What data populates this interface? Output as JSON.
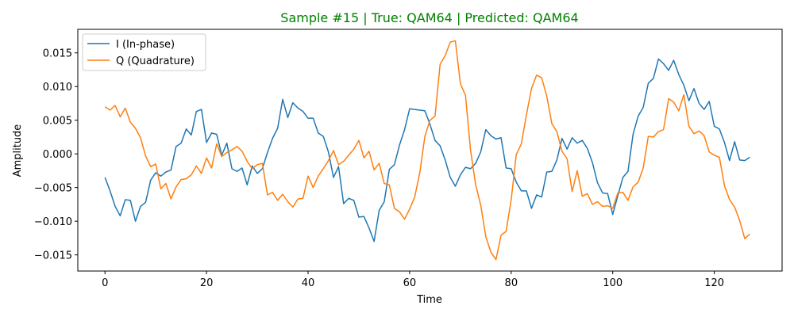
{
  "chart_data": {
    "type": "line",
    "title": "Sample #15 | True: QAM64 | Predicted: QAM64",
    "title_color": "#008000",
    "xlabel": "Time",
    "ylabel": "Amplitude",
    "xlim": [
      -5.35,
      133.35
    ],
    "ylim": [
      -0.0174,
      0.0185
    ],
    "xticks": [
      0,
      20,
      40,
      60,
      80,
      100,
      120
    ],
    "xtick_labels": [
      "0",
      "20",
      "40",
      "60",
      "80",
      "100",
      "120"
    ],
    "yticks": [
      -0.015,
      -0.01,
      -0.005,
      0.0,
      0.005,
      0.01,
      0.015
    ],
    "ytick_labels": [
      "−0.015",
      "−0.010",
      "−0.005",
      "0.000",
      "0.005",
      "0.010",
      "0.015"
    ],
    "grid": false,
    "legend_position": "top-left",
    "series": [
      {
        "name": "I (In-phase)",
        "color": "#1f77b4",
        "values": [
          -0.0035,
          -0.0055,
          -0.0078,
          -0.0092,
          -0.0068,
          -0.0069,
          -0.01,
          -0.0078,
          -0.0072,
          -0.0039,
          -0.0028,
          -0.0033,
          -0.0027,
          -0.0024,
          0.0011,
          0.0016,
          0.0037,
          0.0028,
          0.0063,
          0.0066,
          0.0017,
          0.0031,
          0.0029,
          -0.0002,
          0.0016,
          -0.0022,
          -0.0026,
          -0.0021,
          -0.0046,
          -0.0018,
          -0.0029,
          -0.0022,
          0.0002,
          0.0023,
          0.0038,
          0.0081,
          0.0054,
          0.0076,
          0.0068,
          0.0063,
          0.0053,
          0.0053,
          0.0031,
          0.0026,
          0.0003,
          -0.0035,
          -0.0019,
          -0.0074,
          -0.0066,
          -0.0069,
          -0.0094,
          -0.0093,
          -0.011,
          -0.013,
          -0.0084,
          -0.0071,
          -0.0023,
          -0.0016,
          0.0013,
          0.0036,
          0.0067,
          0.0066,
          0.0065,
          0.0064,
          0.0044,
          0.002,
          0.0012,
          -0.0009,
          -0.0035,
          -0.0048,
          -0.0031,
          -0.002,
          -0.0022,
          -0.0014,
          0.0003,
          0.0036,
          0.0027,
          0.0022,
          0.0024,
          -0.0021,
          -0.0022,
          -0.0042,
          -0.0055,
          -0.0055,
          -0.0081,
          -0.0061,
          -0.0064,
          -0.0027,
          -0.0026,
          -0.0009,
          0.0023,
          0.0007,
          0.0024,
          0.0016,
          0.002,
          0.0008,
          -0.0013,
          -0.0043,
          -0.0058,
          -0.0059,
          -0.009,
          -0.0062,
          -0.0035,
          -0.0026,
          0.0029,
          0.0056,
          0.0069,
          0.0105,
          0.0112,
          0.0141,
          0.0134,
          0.0124,
          0.0139,
          0.0118,
          0.0102,
          0.0079,
          0.0097,
          0.0075,
          0.0066,
          0.0078,
          0.0041,
          0.0037,
          0.0017,
          -0.001,
          0.0018,
          -0.0009,
          -0.001,
          -0.0005
        ]
      },
      {
        "name": "Q (Quadrature)",
        "color": "#ff7f0e",
        "values": [
          0.007,
          0.0065,
          0.0072,
          0.0055,
          0.0068,
          0.0047,
          0.0038,
          0.0024,
          -0.0003,
          -0.0019,
          -0.0015,
          -0.0052,
          -0.0044,
          -0.0067,
          -0.0049,
          -0.0038,
          -0.0037,
          -0.0031,
          -0.0018,
          -0.0029,
          -0.0006,
          -0.0021,
          0.0015,
          -0.0004,
          0.0002,
          0.0006,
          0.0011,
          0.0004,
          -0.0011,
          -0.0022,
          -0.0016,
          -0.0014,
          -0.0061,
          -0.0057,
          -0.0069,
          -0.006,
          -0.0071,
          -0.0079,
          -0.0067,
          -0.0066,
          -0.0033,
          -0.005,
          -0.0033,
          -0.0022,
          -0.001,
          0.0005,
          -0.0016,
          -0.0011,
          -0.0002,
          0.0007,
          0.002,
          -0.0006,
          0.0004,
          -0.0024,
          -0.0014,
          -0.0044,
          -0.0046,
          -0.0081,
          -0.0086,
          -0.0097,
          -0.0082,
          -0.0064,
          -0.0028,
          0.0026,
          0.005,
          0.0056,
          0.0133,
          0.0146,
          0.0166,
          0.0168,
          0.0104,
          0.0087,
          0.0005,
          -0.0046,
          -0.0076,
          -0.0123,
          -0.0146,
          -0.0157,
          -0.0121,
          -0.0115,
          -0.0068,
          -0.0001,
          0.0015,
          0.0058,
          0.0097,
          0.0117,
          0.0113,
          0.0086,
          0.0045,
          0.0033,
          0.0004,
          -0.0007,
          -0.0056,
          -0.0025,
          -0.0063,
          -0.0059,
          -0.0075,
          -0.0071,
          -0.0078,
          -0.0077,
          -0.0081,
          -0.0058,
          -0.0057,
          -0.0069,
          -0.0049,
          -0.0042,
          -0.0021,
          0.0026,
          0.0025,
          0.0033,
          0.0036,
          0.0082,
          0.0077,
          0.0064,
          0.0088,
          0.0041,
          0.003,
          0.0034,
          0.0027,
          0.0003,
          -0.0002,
          -0.0005,
          -0.0047,
          -0.0068,
          -0.0079,
          -0.0099,
          -0.0126,
          -0.0119
        ]
      }
    ]
  }
}
